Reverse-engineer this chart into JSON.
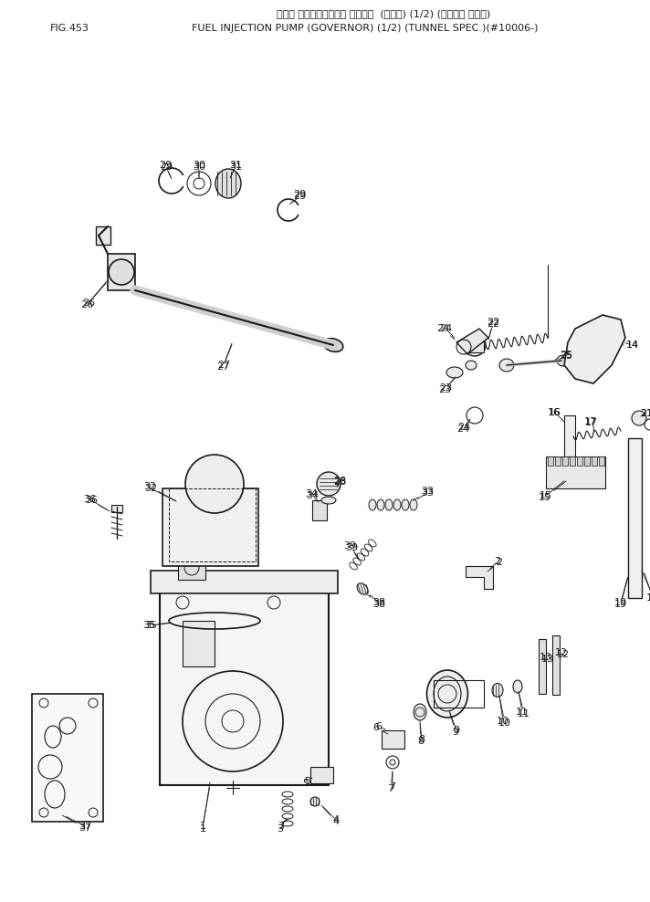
{
  "title_jp": "フェル インジェクション ボンプ・  (ガバナ) (1/2) (トンネル ショウ)",
  "title_en": "FUEL INJECTION PUMP (GOVERNOR) (1/2) (TUNNEL SPEC.)(#10006-)",
  "fig_label": "FIG.453",
  "bg_color": "#ffffff",
  "lc": "#1a1a1a",
  "fig_width": 7.12,
  "fig_height": 9.88,
  "dpi": 100
}
